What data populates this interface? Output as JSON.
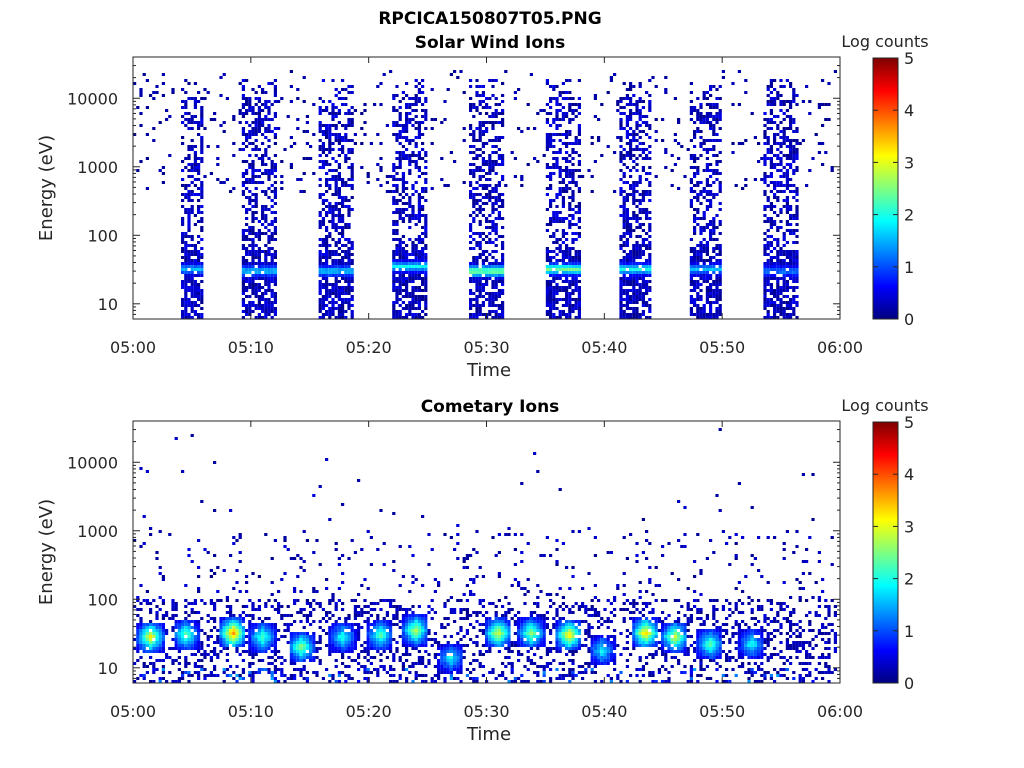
{
  "figure": {
    "title": "RPCICA150807T05.PNG"
  },
  "colormap": {
    "name": "jet",
    "stops": [
      "#00007f",
      "#0000ff",
      "#007fff",
      "#00ffff",
      "#7fff7f",
      "#ffff00",
      "#ff7f00",
      "#ff0000",
      "#7f0000"
    ]
  },
  "chart_data": [
    {
      "type": "heatmap",
      "title": "Solar Wind Ions",
      "xlabel": "Time",
      "ylabel": "Energy (eV)",
      "x_ticks": [
        "05:00",
        "05:10",
        "05:20",
        "05:30",
        "05:40",
        "05:50",
        "06:00"
      ],
      "xlim": [
        "05:00",
        "06:00"
      ],
      "y_scale": "log",
      "y_ticks": [
        "10",
        "100",
        "1000",
        "10000"
      ],
      "ylim": [
        6,
        40000
      ],
      "colorbar": {
        "label": "Log counts",
        "range": [
          0,
          5
        ],
        "ticks": [
          "0",
          "1",
          "2",
          "3",
          "4",
          "5"
        ]
      },
      "description_points": {
        "bursts": [
          {
            "start": 4.0,
            "end": 6.1,
            "peak_energy": 32,
            "peak_log_counts": 1.5
          },
          {
            "start": 9.3,
            "end": 12.3,
            "peak_energy": 30,
            "peak_log_counts": 1.6
          },
          {
            "start": 15.7,
            "end": 18.8,
            "peak_energy": 30,
            "peak_log_counts": 1.6
          },
          {
            "start": 22.1,
            "end": 25.0,
            "peak_energy": 35,
            "peak_log_counts": 1.8
          },
          {
            "start": 28.4,
            "end": 31.6,
            "peak_energy": 30,
            "peak_log_counts": 2.6
          },
          {
            "start": 34.9,
            "end": 37.9,
            "peak_energy": 32,
            "peak_log_counts": 2.4
          },
          {
            "start": 41.2,
            "end": 44.0,
            "peak_energy": 32,
            "peak_log_counts": 2.0
          },
          {
            "start": 47.3,
            "end": 50.0,
            "peak_energy": 32,
            "peak_log_counts": 1.5
          },
          {
            "start": 53.6,
            "end": 56.6,
            "peak_energy": 30,
            "peak_log_counts": 1.2
          }
        ]
      }
    },
    {
      "type": "heatmap",
      "title": "Cometary Ions",
      "xlabel": "Time",
      "ylabel": "Energy (eV)",
      "x_ticks": [
        "05:00",
        "05:10",
        "05:20",
        "05:30",
        "05:40",
        "05:50",
        "06:00"
      ],
      "xlim": [
        "05:00",
        "06:00"
      ],
      "y_scale": "log",
      "y_ticks": [
        "10",
        "100",
        "1000",
        "10000"
      ],
      "ylim": [
        6,
        40000
      ],
      "colorbar": {
        "label": "Log counts",
        "range": [
          0,
          5
        ],
        "ticks": [
          "0",
          "1",
          "2",
          "3",
          "4",
          "5"
        ]
      },
      "description_points": {
        "blobs": [
          {
            "time": 1.5,
            "energy": 28,
            "log_counts": 3.1
          },
          {
            "time": 4.5,
            "energy": 30,
            "log_counts": 2.4
          },
          {
            "time": 8.5,
            "energy": 32,
            "log_counts": 3.7
          },
          {
            "time": 11.0,
            "energy": 28,
            "log_counts": 2.2
          },
          {
            "time": 14.3,
            "energy": 20,
            "log_counts": 2.6
          },
          {
            "time": 17.8,
            "energy": 28,
            "log_counts": 2.0
          },
          {
            "time": 21.0,
            "energy": 30,
            "log_counts": 2.3
          },
          {
            "time": 24.0,
            "energy": 35,
            "log_counts": 2.8
          },
          {
            "time": 27.0,
            "energy": 14,
            "log_counts": 1.8
          },
          {
            "time": 31.0,
            "energy": 32,
            "log_counts": 3.0
          },
          {
            "time": 33.8,
            "energy": 32,
            "log_counts": 2.6
          },
          {
            "time": 37.0,
            "energy": 30,
            "log_counts": 3.3
          },
          {
            "time": 39.8,
            "energy": 18,
            "log_counts": 1.8
          },
          {
            "time": 43.5,
            "energy": 32,
            "log_counts": 3.4
          },
          {
            "time": 46.0,
            "energy": 28,
            "log_counts": 2.9
          },
          {
            "time": 49.0,
            "energy": 22,
            "log_counts": 2.3
          },
          {
            "time": 52.5,
            "energy": 22,
            "log_counts": 1.9
          }
        ]
      }
    }
  ]
}
